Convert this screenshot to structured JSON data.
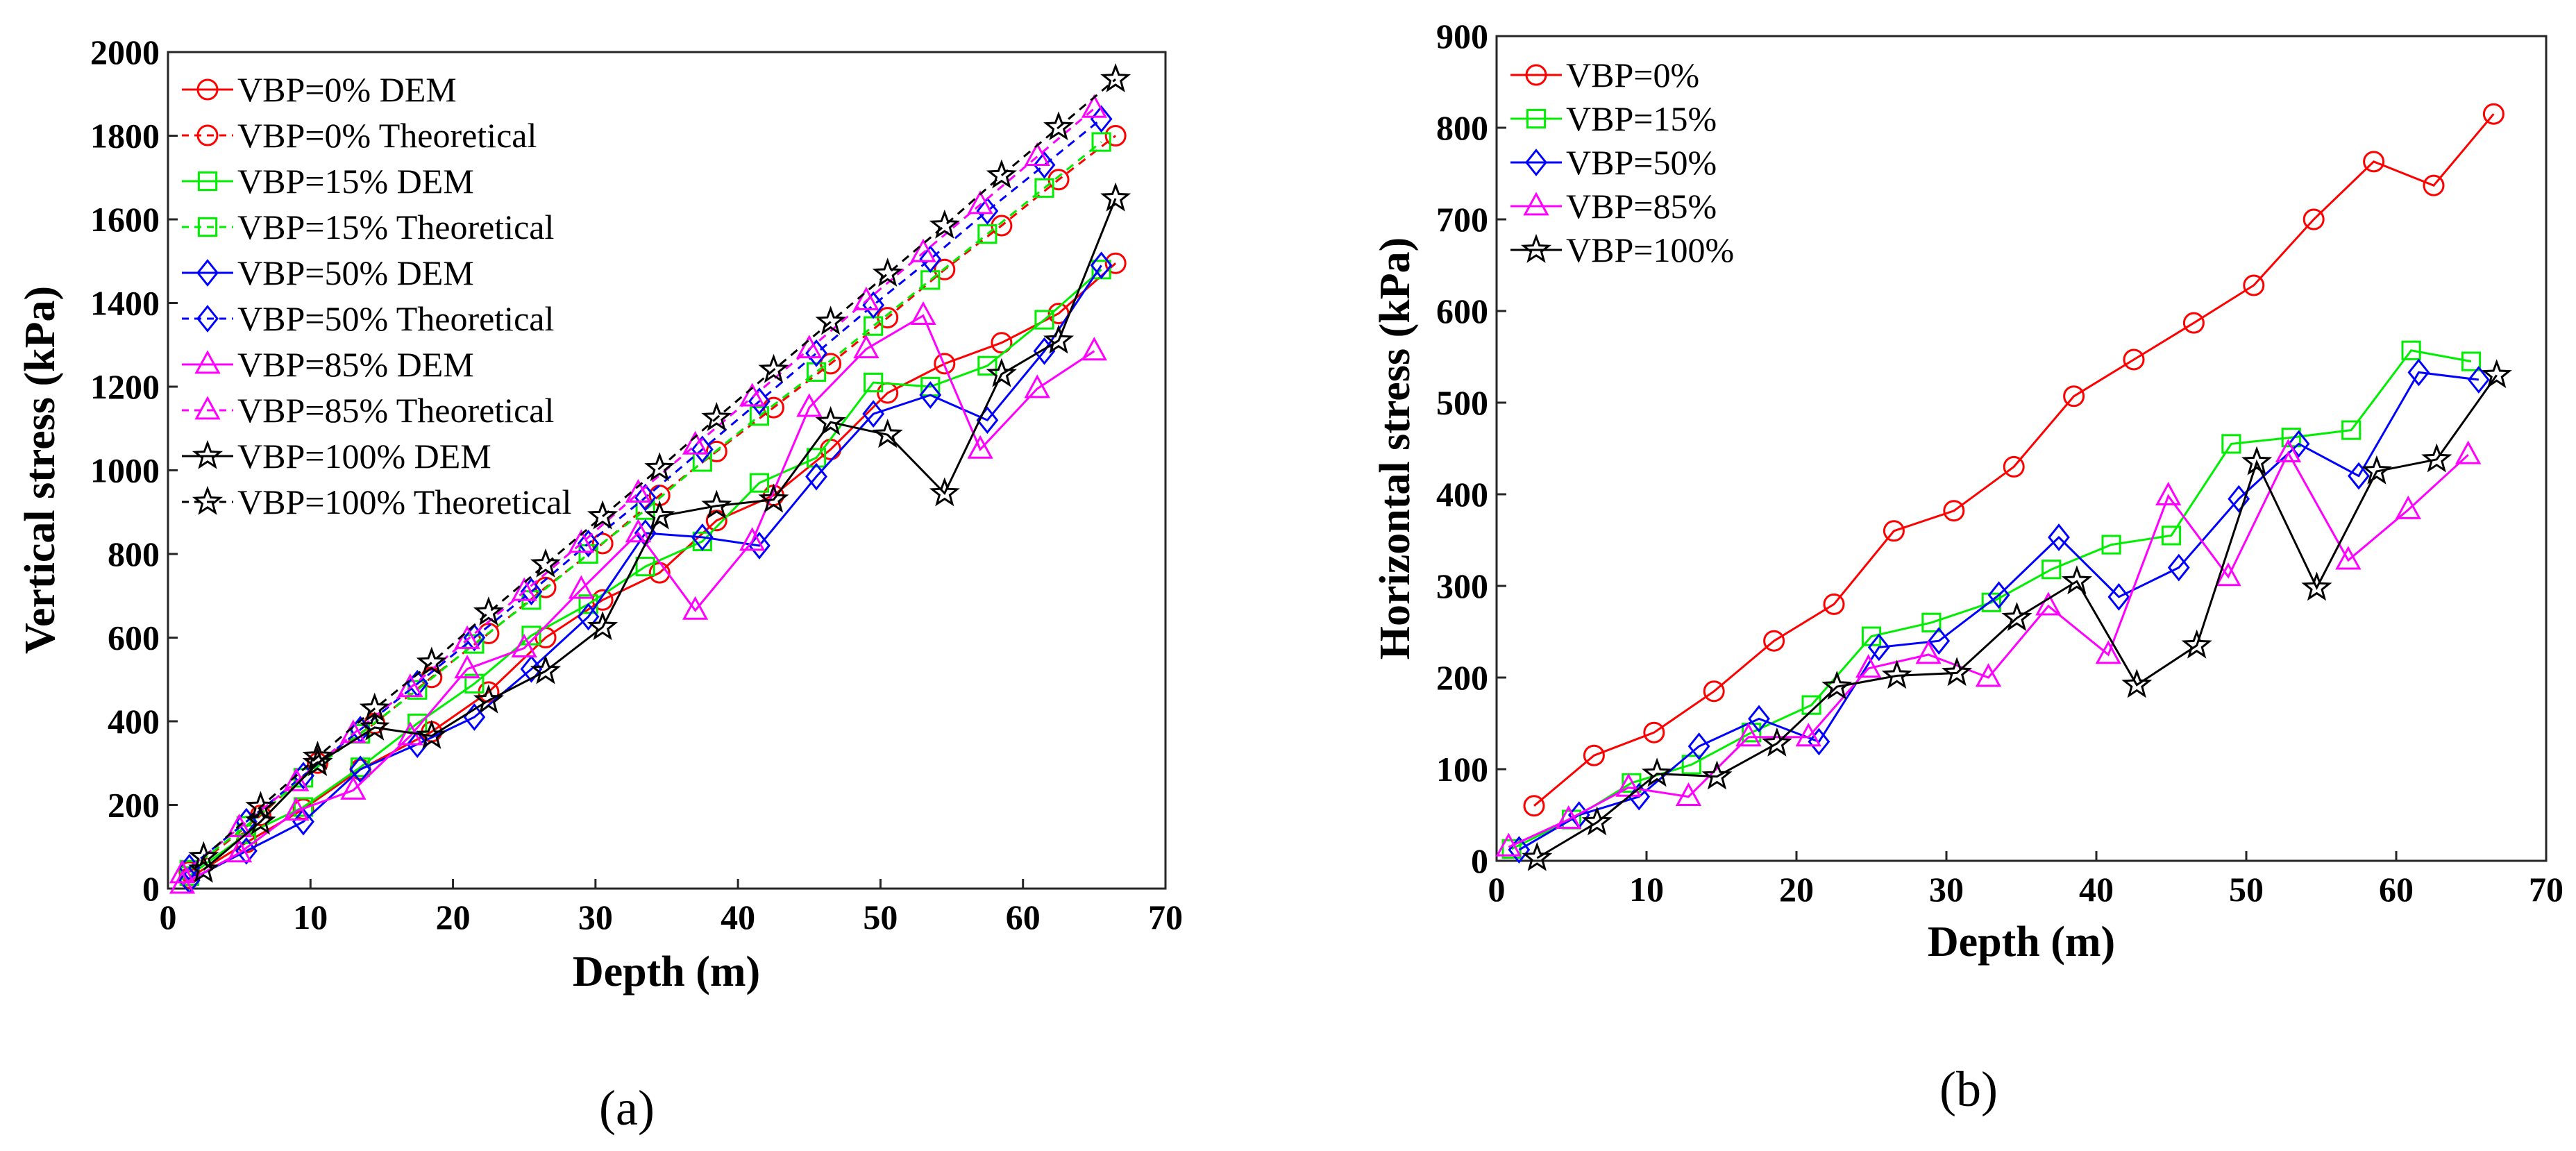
{
  "chart_data": [
    {
      "type": "line",
      "panel": "a",
      "xlabel": "Depth (m)",
      "ylabel": "Vertical stress (kPa)",
      "xlim": [
        0,
        70
      ],
      "ylim": [
        0,
        2000
      ],
      "xticks": [
        0,
        10,
        20,
        30,
        40,
        50,
        60,
        70
      ],
      "yticks": [
        0,
        200,
        400,
        600,
        800,
        1000,
        1200,
        1400,
        1600,
        1800,
        2000
      ],
      "legend_position": "top-left",
      "series": [
        {
          "name": "VBP=0% DEM",
          "color": "#ff0000",
          "marker": "circle",
          "dash": "solid",
          "x": [
            1.5,
            5.5,
            9.5,
            13.5,
            18.5,
            22.5,
            26.5,
            30.5,
            34.5,
            38.5,
            42.5,
            46.5,
            50.5,
            54.5,
            58.5,
            62.5,
            66.5
          ],
          "y": [
            25,
            110,
            190,
            285,
            375,
            470,
            600,
            690,
            755,
            880,
            940,
            1050,
            1185,
            1255,
            1305,
            1375,
            1495
          ]
        },
        {
          "name": "VBP=0% Theoretical",
          "color": "#ff0000",
          "marker": "circle",
          "dash": "dashed",
          "x": [
            1.5,
            6.5,
            10.5,
            14.5,
            18.5,
            22.5,
            26.5,
            30.5,
            34.5,
            38.5,
            42.5,
            46.5,
            50.5,
            54.5,
            58.5,
            62.5,
            66.5
          ],
          "y": [
            40,
            175,
            300,
            395,
            505,
            610,
            720,
            825,
            940,
            1045,
            1150,
            1255,
            1365,
            1480,
            1585,
            1695,
            1800
          ]
        },
        {
          "name": "VBP=15% DEM",
          "color": "#00ee00",
          "marker": "square",
          "dash": "solid",
          "x": [
            1.5,
            5.5,
            9.5,
            13.5,
            17.5,
            21.5,
            25.5,
            29.5,
            33.5,
            37.5,
            41.5,
            45.5,
            49.5,
            53.5,
            57.5,
            61.5,
            65.5
          ],
          "y": [
            30,
            130,
            195,
            290,
            395,
            490,
            605,
            680,
            770,
            830,
            970,
            1030,
            1210,
            1200,
            1250,
            1360,
            1480
          ]
        },
        {
          "name": "VBP=15% Theoretical",
          "color": "#00ee00",
          "marker": "square",
          "dash": "dashed",
          "x": [
            1.5,
            5.5,
            9.5,
            13.5,
            17.5,
            21.5,
            25.5,
            29.5,
            33.5,
            37.5,
            41.5,
            45.5,
            49.5,
            53.5,
            57.5,
            61.5,
            65.5
          ],
          "y": [
            45,
            150,
            265,
            370,
            475,
            585,
            690,
            800,
            905,
            1020,
            1130,
            1235,
            1345,
            1455,
            1565,
            1675,
            1785
          ]
        },
        {
          "name": "VBP=50% DEM",
          "color": "#0000ff",
          "marker": "diamond",
          "dash": "solid",
          "x": [
            1.5,
            5.5,
            9.5,
            13.5,
            17.5,
            21.5,
            25.5,
            29.5,
            33.5,
            37.5,
            41.5,
            45.5,
            49.5,
            53.5,
            57.5,
            61.5,
            65.5
          ],
          "y": [
            20,
            90,
            160,
            285,
            345,
            410,
            525,
            650,
            850,
            840,
            820,
            985,
            1135,
            1180,
            1120,
            1285,
            1490
          ]
        },
        {
          "name": "VBP=50% Theoretical",
          "color": "#0000ff",
          "marker": "diamond",
          "dash": "dashed",
          "x": [
            1.5,
            5.5,
            9.5,
            13.5,
            17.5,
            21.5,
            25.5,
            29.5,
            33.5,
            37.5,
            41.5,
            45.5,
            49.5,
            53.5,
            57.5,
            61.5,
            65.5
          ],
          "y": [
            50,
            160,
            270,
            380,
            490,
            600,
            710,
            825,
            935,
            1050,
            1165,
            1280,
            1395,
            1505,
            1620,
            1730,
            1840
          ]
        },
        {
          "name": "VBP=85% DEM",
          "color": "#ff00ff",
          "marker": "triangle",
          "dash": "solid",
          "x": [
            1.0,
            5.0,
            9.0,
            13.0,
            17.0,
            21.0,
            25.0,
            29.0,
            33.0,
            37.0,
            41.0,
            45.0,
            49.0,
            53.0,
            57.0,
            61.0,
            65.0
          ],
          "y": [
            10,
            85,
            185,
            235,
            365,
            525,
            575,
            715,
            850,
            665,
            830,
            1150,
            1290,
            1370,
            1050,
            1195,
            1285
          ]
        },
        {
          "name": "VBP=85% Theoretical",
          "color": "#ff00ff",
          "marker": "triangle",
          "dash": "dashed",
          "x": [
            1.0,
            5.0,
            9.0,
            13.0,
            17.0,
            21.0,
            25.0,
            29.0,
            33.0,
            37.0,
            41.0,
            45.0,
            49.0,
            53.0,
            57.0,
            61.0,
            65.0
          ],
          "y": [
            35,
            145,
            255,
            370,
            480,
            595,
            710,
            825,
            945,
            1060,
            1175,
            1290,
            1405,
            1520,
            1635,
            1750,
            1865
          ]
        },
        {
          "name": "VBP=100% DEM",
          "color": "#000000",
          "marker": "star",
          "dash": "solid",
          "x": [
            2.5,
            6.5,
            10.5,
            14.5,
            18.5,
            22.5,
            26.5,
            30.5,
            34.5,
            38.5,
            42.5,
            46.5,
            50.5,
            54.5,
            58.5,
            62.5,
            66.5
          ],
          "y": [
            45,
            160,
            300,
            385,
            365,
            450,
            520,
            625,
            890,
            915,
            930,
            1115,
            1085,
            945,
            1230,
            1310,
            1650
          ]
        },
        {
          "name": "VBP=100% Theoretical",
          "color": "#000000",
          "marker": "star",
          "dash": "dashed",
          "x": [
            2.5,
            6.5,
            10.5,
            14.5,
            18.5,
            22.5,
            26.5,
            30.5,
            34.5,
            38.5,
            42.5,
            46.5,
            50.5,
            54.5,
            58.5,
            62.5,
            66.5
          ],
          "y": [
            75,
            195,
            315,
            430,
            540,
            660,
            775,
            890,
            1005,
            1125,
            1240,
            1355,
            1470,
            1585,
            1705,
            1820,
            1935
          ]
        }
      ]
    },
    {
      "type": "line",
      "panel": "b",
      "xlabel": "Depth (m)",
      "ylabel": "Horizontal stress (kPa)",
      "xlim": [
        0,
        70
      ],
      "ylim": [
        0,
        900
      ],
      "xticks": [
        0,
        10,
        20,
        30,
        40,
        50,
        60,
        70
      ],
      "yticks": [
        0,
        100,
        200,
        300,
        400,
        500,
        600,
        700,
        800,
        900
      ],
      "legend_position": "top-left",
      "series": [
        {
          "name": "VBP=0%",
          "color": "#ff0000",
          "marker": "circle",
          "dash": "solid",
          "x": [
            2.5,
            6.5,
            10.5,
            14.5,
            18.5,
            22.5,
            26.5,
            30.5,
            34.5,
            38.5,
            42.5,
            46.5,
            50.5,
            54.5,
            58.5,
            62.5,
            66.5
          ],
          "y": [
            60,
            115,
            140,
            185,
            240,
            280,
            360,
            382,
            430,
            507,
            547,
            587,
            628,
            700,
            763,
            737,
            815
          ]
        },
        {
          "name": "VBP=15%",
          "color": "#00ee00",
          "marker": "square",
          "dash": "solid",
          "x": [
            1.0,
            5.0,
            9.0,
            13.0,
            17.0,
            21.0,
            25.0,
            29.0,
            33.0,
            37.0,
            41.0,
            45.0,
            49.0,
            53.0,
            57.0,
            61.0,
            65.0
          ],
          "y": [
            13,
            45,
            85,
            105,
            140,
            170,
            245,
            260,
            282,
            318,
            345,
            355,
            455,
            462,
            470,
            557,
            545
          ]
        },
        {
          "name": "VBP=50%",
          "color": "#0000ff",
          "marker": "diamond",
          "dash": "solid",
          "x": [
            1.5,
            5.5,
            9.5,
            13.5,
            17.5,
            21.5,
            25.5,
            29.5,
            33.5,
            37.5,
            41.5,
            45.5,
            49.5,
            53.5,
            57.5,
            61.5,
            65.5
          ],
          "y": [
            12,
            50,
            70,
            125,
            155,
            130,
            233,
            240,
            290,
            353,
            288,
            320,
            395,
            455,
            420,
            533,
            525
          ]
        },
        {
          "name": "VBP=85%",
          "color": "#ff00ff",
          "marker": "triangle",
          "dash": "solid",
          "x": [
            0.8,
            4.8,
            8.8,
            12.8,
            16.8,
            20.8,
            24.8,
            28.8,
            32.8,
            36.8,
            40.8,
            44.8,
            48.8,
            52.8,
            56.8,
            60.8,
            64.8
          ],
          "y": [
            15,
            45,
            80,
            70,
            135,
            135,
            210,
            225,
            200,
            278,
            225,
            398,
            310,
            445,
            328,
            383,
            443
          ]
        },
        {
          "name": "VBP=100%",
          "color": "#000000",
          "marker": "star",
          "dash": "solid",
          "x": [
            2.7,
            6.7,
            10.7,
            14.7,
            18.7,
            22.7,
            26.7,
            30.7,
            34.7,
            38.7,
            42.7,
            46.7,
            50.7,
            54.7,
            58.7,
            62.7,
            66.7
          ],
          "y": [
            3,
            42,
            95,
            92,
            128,
            190,
            202,
            205,
            265,
            305,
            192,
            235,
            435,
            298,
            425,
            438,
            530
          ]
        }
      ]
    }
  ],
  "captions": {
    "a": "(a)",
    "b": "(b)"
  }
}
